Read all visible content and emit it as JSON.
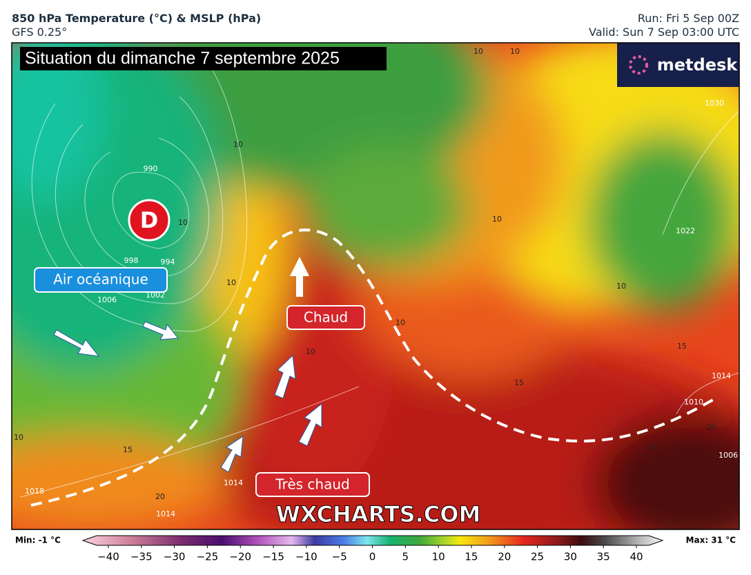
{
  "header": {
    "title": "850 hPa Temperature (°C) & MSLP (hPa)",
    "model": "GFS 0.25°",
    "run": "Run: Fri 5 Sep 00Z",
    "valid": "Valid: Sun 7 Sep 03:00 UTC"
  },
  "map": {
    "banner": "Situation du dimanche 7 septembre 2025",
    "logo": "metdesk",
    "low_marker": "D",
    "annotations": [
      "Air océanique",
      "Chaud",
      "Très chaud"
    ],
    "watermark": "WXCHARTS.COM",
    "isobar_labels": [
      990,
      994,
      998,
      1002,
      1006,
      1010,
      1014,
      1018,
      1022,
      1030,
      1014,
      1006,
      1014
    ],
    "temperature_labels": [
      10,
      10,
      10,
      10,
      10,
      10,
      10,
      10,
      10,
      10,
      15,
      15,
      15,
      20,
      20,
      20
    ]
  },
  "colorbar": {
    "min": "Min: -1 °C",
    "max": "Max: 31 °C",
    "ticks": [
      {
        "value": -40,
        "label": "−40"
      },
      {
        "value": -35,
        "label": "−35"
      },
      {
        "value": -30,
        "label": "−30"
      },
      {
        "value": -25,
        "label": "−25"
      },
      {
        "value": -20,
        "label": "−20"
      },
      {
        "value": -15,
        "label": "−15"
      },
      {
        "value": -10,
        "label": "−10"
      },
      {
        "value": -5,
        "label": "−5"
      },
      0,
      5,
      10,
      15,
      20,
      25,
      30,
      35,
      40
    ]
  }
}
